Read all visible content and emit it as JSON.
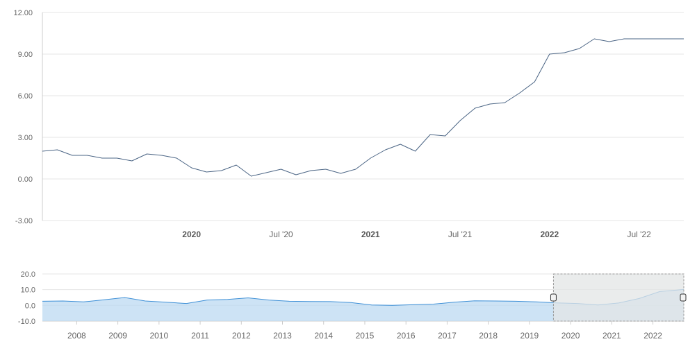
{
  "chart_data": [
    {
      "type": "line",
      "title": "",
      "xlabel": "",
      "ylabel": "",
      "ylim": [
        -3,
        12
      ],
      "y_ticks": [
        "12.00",
        "9.00",
        "6.00",
        "3.00",
        "0.00",
        "-3.00"
      ],
      "x_range": [
        "2019-03",
        "2022-10"
      ],
      "x_tick_labels": [
        {
          "label": "2020",
          "date": "2020-01",
          "major": true
        },
        {
          "label": "Jul '20",
          "date": "2020-07",
          "major": false
        },
        {
          "label": "2021",
          "date": "2021-01",
          "major": true
        },
        {
          "label": "Jul '21",
          "date": "2021-07",
          "major": false
        },
        {
          "label": "2022",
          "date": "2022-01",
          "major": true
        },
        {
          "label": "Jul '22",
          "date": "2022-07",
          "major": false
        }
      ],
      "grid": true,
      "line_color": "#4a6484",
      "series": [
        {
          "x": [
            "2019-03",
            "2019-04",
            "2019-05",
            "2019-06",
            "2019-07",
            "2019-08",
            "2019-09",
            "2019-10",
            "2019-11",
            "2019-12",
            "2020-01",
            "2020-02",
            "2020-03",
            "2020-04",
            "2020-05",
            "2020-06",
            "2020-07",
            "2020-08",
            "2020-09",
            "2020-10",
            "2020-11",
            "2020-12",
            "2021-01",
            "2021-02",
            "2021-03",
            "2021-04",
            "2021-05",
            "2021-06",
            "2021-07",
            "2021-08",
            "2021-09",
            "2021-10",
            "2021-11",
            "2021-12",
            "2022-01",
            "2022-02",
            "2022-03",
            "2022-04",
            "2022-05",
            "2022-06",
            "2022-07",
            "2022-08",
            "2022-09",
            "2022-10"
          ],
          "values": [
            2.0,
            2.1,
            1.7,
            1.7,
            1.5,
            1.5,
            1.3,
            1.8,
            1.7,
            1.5,
            0.8,
            0.5,
            0.6,
            1.0,
            0.2,
            0.45,
            0.7,
            0.3,
            0.6,
            0.7,
            0.4,
            0.7,
            1.5,
            2.1,
            2.5,
            2.0,
            3.2,
            3.1,
            4.2,
            5.1,
            5.4,
            5.5,
            6.2,
            7.0,
            9.0,
            9.1,
            9.4,
            10.1,
            9.9,
            10.1,
            10.1,
            10.1,
            10.1,
            10.1
          ]
        }
      ]
    },
    {
      "type": "area",
      "title": "",
      "ylim": [
        -10,
        20
      ],
      "y_ticks": [
        "20.0",
        "10.0",
        "0.0",
        "-10.0"
      ],
      "x_range": [
        "2007-03",
        "2022-10"
      ],
      "x_tick_labels": [
        "2008",
        "2009",
        "2010",
        "2011",
        "2012",
        "2013",
        "2014",
        "2015",
        "2016",
        "2017",
        "2018",
        "2019",
        "2020",
        "2021",
        "2022"
      ],
      "fill_color": "#bcd9f2",
      "line_color": "#3d8fd6",
      "selection_range": [
        "2019-08",
        "2022-10"
      ],
      "selection_color": "#e3e5e6",
      "series": [
        {
          "x": [
            "2007-03",
            "2007-09",
            "2008-03",
            "2008-09",
            "2009-03",
            "2009-09",
            "2010-03",
            "2010-09",
            "2011-03",
            "2011-09",
            "2012-03",
            "2012-09",
            "2013-03",
            "2013-09",
            "2014-03",
            "2014-09",
            "2015-03",
            "2015-09",
            "2016-03",
            "2016-09",
            "2017-03",
            "2017-09",
            "2018-03",
            "2018-09",
            "2019-03",
            "2019-09",
            "2020-03",
            "2020-09",
            "2021-03",
            "2021-09",
            "2022-03",
            "2022-10"
          ],
          "values": [
            2.6,
            2.8,
            2.2,
            3.6,
            5.0,
            2.8,
            2.0,
            1.2,
            3.4,
            3.8,
            4.8,
            3.4,
            2.6,
            2.5,
            2.4,
            1.8,
            0.3,
            0.0,
            0.4,
            0.8,
            2.0,
            2.9,
            2.8,
            2.6,
            2.2,
            1.6,
            1.2,
            0.3,
            1.5,
            4.4,
            8.8,
            10.1
          ]
        }
      ]
    }
  ]
}
